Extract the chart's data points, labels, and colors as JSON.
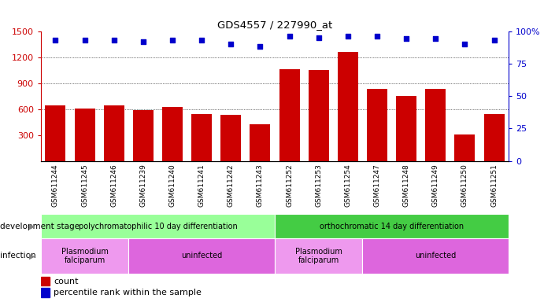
{
  "title": "GDS4557 / 227990_at",
  "samples": [
    "GSM611244",
    "GSM611245",
    "GSM611246",
    "GSM611239",
    "GSM611240",
    "GSM611241",
    "GSM611242",
    "GSM611243",
    "GSM611252",
    "GSM611253",
    "GSM611254",
    "GSM611247",
    "GSM611248",
    "GSM611249",
    "GSM611250",
    "GSM611251"
  ],
  "counts": [
    640,
    610,
    640,
    590,
    620,
    540,
    530,
    420,
    1060,
    1050,
    1260,
    830,
    750,
    830,
    310,
    545
  ],
  "percentiles": [
    93,
    93,
    93,
    92,
    93,
    93,
    90,
    88,
    96,
    95,
    96,
    96,
    94,
    94,
    90,
    93
  ],
  "ylim_left": [
    0,
    1500
  ],
  "ylim_right": [
    0,
    100
  ],
  "yticks_left": [
    300,
    600,
    900,
    1200,
    1500
  ],
  "yticks_right": [
    0,
    25,
    50,
    75,
    100
  ],
  "bar_color": "#cc0000",
  "dot_color": "#0000cc",
  "dev_stage_groups": [
    {
      "label": "polychromatophilic 10 day differentiation",
      "start": 0,
      "end": 8,
      "color": "#99ff99"
    },
    {
      "label": "orthochromatic 14 day differentiation",
      "start": 8,
      "end": 16,
      "color": "#44cc44"
    }
  ],
  "infection_groups": [
    {
      "label": "Plasmodium\nfalciparum",
      "start": 0,
      "end": 3,
      "color": "#ee99ee"
    },
    {
      "label": "uninfected",
      "start": 3,
      "end": 8,
      "color": "#dd66dd"
    },
    {
      "label": "Plasmodium\nfalciparum",
      "start": 8,
      "end": 11,
      "color": "#ee99ee"
    },
    {
      "label": "uninfected",
      "start": 11,
      "end": 16,
      "color": "#dd66dd"
    }
  ],
  "dev_stage_label": "development stage",
  "infection_label": "infection",
  "legend_count_label": "count",
  "legend_pct_label": "percentile rank within the sample",
  "tick_area_bg": "#cccccc",
  "right_axis_color": "#0000cc",
  "left_axis_color": "#cc0000",
  "grid_lines": [
    600,
    900,
    1200
  ],
  "n_samples": 16
}
